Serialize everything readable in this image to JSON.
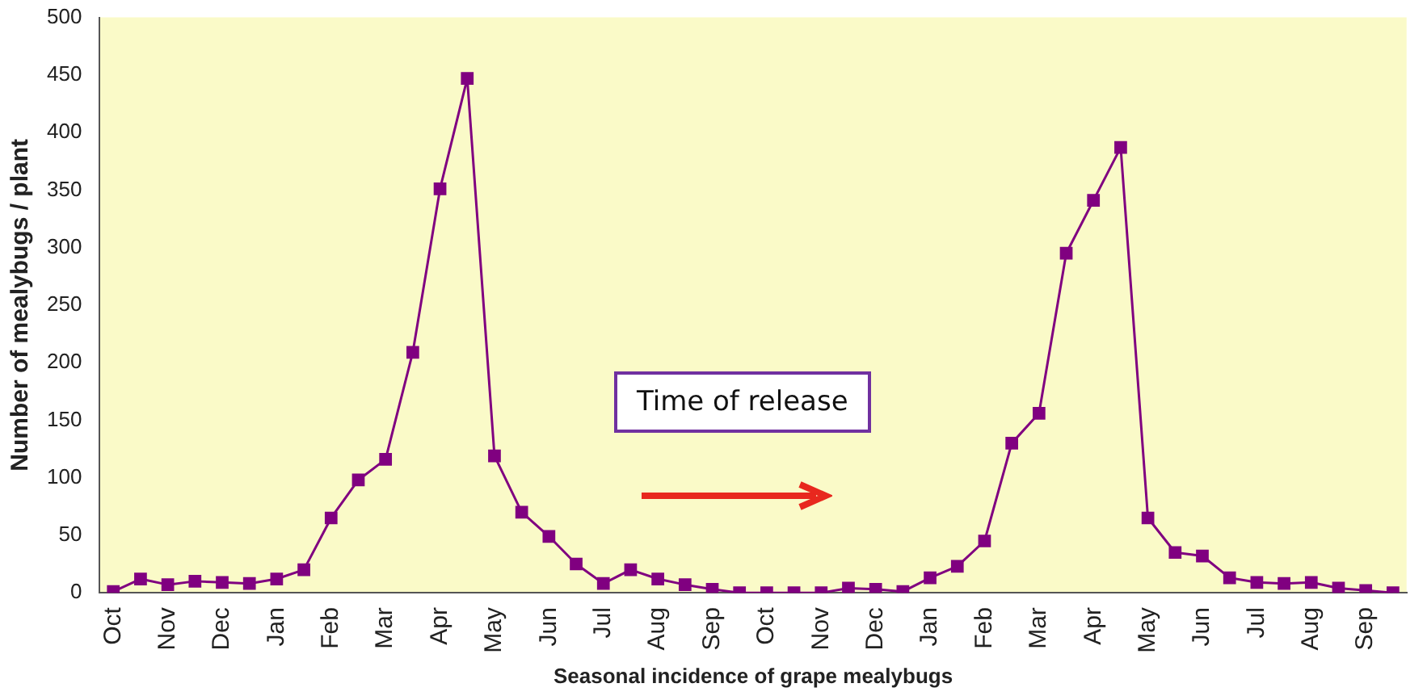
{
  "chart_data": {
    "type": "line",
    "xlabel": "Seasonal incidence of grape mealybugs",
    "ylabel": "Number of mealybugs / plant",
    "categories": [
      "Oct",
      null,
      "Nov",
      null,
      "Dec",
      null,
      "Jan",
      null,
      "Feb",
      null,
      "Mar",
      null,
      "Apr",
      null,
      "May",
      null,
      "Jun",
      null,
      "Jul",
      null,
      "Aug",
      null,
      "Sep",
      null,
      "Oct",
      null,
      "Nov",
      null,
      "Dec",
      null,
      "Jan",
      null,
      "Feb",
      null,
      "Mar",
      null,
      "Apr",
      null,
      "May",
      null,
      "Jun",
      null,
      "Jul",
      null,
      "Aug",
      null,
      "Sep",
      null
    ],
    "series": [
      {
        "color": "#800080",
        "values": [
          1,
          12,
          7,
          10,
          9,
          8,
          12,
          20,
          65,
          98,
          116,
          209,
          351,
          447,
          119,
          70,
          49,
          25,
          8,
          20,
          12,
          7,
          3,
          0,
          0,
          0,
          0,
          4,
          3,
          1,
          13,
          23,
          45,
          130,
          156,
          295,
          341,
          387,
          65,
          35,
          32,
          13,
          9,
          8,
          9,
          4,
          2,
          0
        ]
      }
    ],
    "ylim": [
      0,
      500
    ],
    "yticks": [
      0,
      50,
      100,
      150,
      200,
      250,
      300,
      350,
      400,
      450,
      500
    ],
    "grid": false,
    "legend": false,
    "marker": "square",
    "line_style": "solid",
    "annotations": [
      "Time of release"
    ]
  }
}
